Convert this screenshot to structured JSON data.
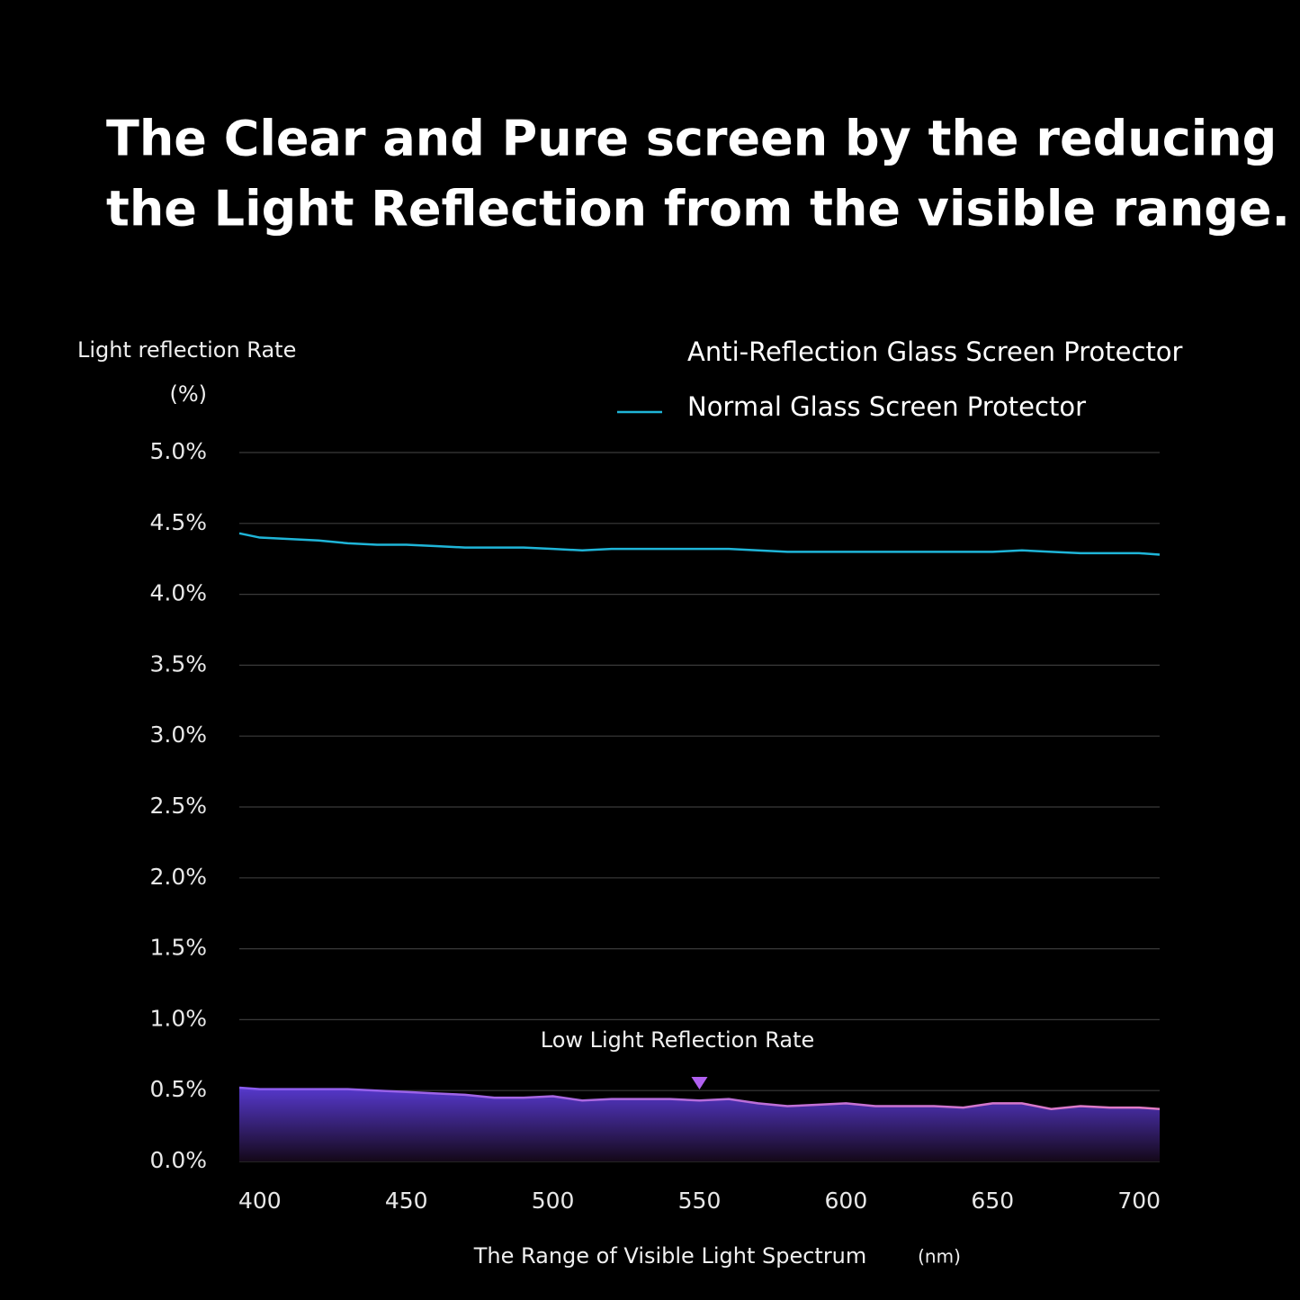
{
  "chart_data": {
    "type": "line",
    "title": [
      "The Clear and Pure screen by the reducing",
      "the Light Reflection from the visible range."
    ],
    "ylabel": "Light reflection Rate",
    "yunit": "(%)",
    "xlabel": "The Range of Visible Light Spectrum",
    "xunit": "(nm)",
    "x": [
      393,
      400,
      410,
      420,
      430,
      440,
      450,
      460,
      470,
      480,
      490,
      500,
      510,
      520,
      530,
      540,
      550,
      560,
      570,
      580,
      590,
      600,
      610,
      620,
      630,
      640,
      650,
      660,
      670,
      680,
      690,
      700,
      707
    ],
    "series": [
      {
        "name": "Anti-Reflection Glass Screen Protector",
        "color": "#e47cc4",
        "area": true,
        "values": [
          0.52,
          0.51,
          0.51,
          0.51,
          0.51,
          0.5,
          0.49,
          0.48,
          0.47,
          0.45,
          0.45,
          0.46,
          0.43,
          0.44,
          0.44,
          0.44,
          0.43,
          0.44,
          0.41,
          0.39,
          0.4,
          0.41,
          0.39,
          0.39,
          0.39,
          0.38,
          0.41,
          0.41,
          0.37,
          0.39,
          0.38,
          0.38,
          0.37
        ]
      },
      {
        "name": "Normal Glass Screen Protector",
        "color": "#1fb5d8",
        "values": [
          4.43,
          4.4,
          4.39,
          4.38,
          4.36,
          4.35,
          4.35,
          4.34,
          4.33,
          4.33,
          4.33,
          4.32,
          4.31,
          4.32,
          4.32,
          4.32,
          4.32,
          4.32,
          4.31,
          4.3,
          4.3,
          4.3,
          4.3,
          4.3,
          4.3,
          4.3,
          4.3,
          4.31,
          4.3,
          4.29,
          4.29,
          4.29,
          4.28
        ]
      }
    ],
    "xlim": [
      393,
      707
    ],
    "xticks": [
      400,
      450,
      500,
      550,
      600,
      650,
      700
    ],
    "ylim": [
      0,
      5
    ],
    "yticks": [
      {
        "value": 0,
        "label": "0.0%"
      },
      {
        "value": 0.5,
        "label": "0.5%"
      },
      {
        "value": 1,
        "label": "1.0%"
      },
      {
        "value": 1.5,
        "label": "1.5%"
      },
      {
        "value": 2,
        "label": "2.0%"
      },
      {
        "value": 2.5,
        "label": "2.5%"
      },
      {
        "value": 3,
        "label": "3.0%"
      },
      {
        "value": 3.5,
        "label": "3.5%"
      },
      {
        "value": 4,
        "label": "4.0%"
      },
      {
        "value": 4.5,
        "label": "4.5%"
      },
      {
        "value": 5,
        "label": "5.0%"
      }
    ],
    "grid": true,
    "annotations": [
      {
        "text": "Low Light Reflection Rate",
        "x": 550
      }
    ]
  }
}
